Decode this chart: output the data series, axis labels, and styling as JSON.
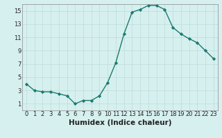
{
  "x": [
    0,
    1,
    2,
    3,
    4,
    5,
    6,
    7,
    8,
    9,
    10,
    11,
    12,
    13,
    14,
    15,
    16,
    17,
    18,
    19,
    20,
    21,
    22,
    23
  ],
  "y": [
    4.0,
    3.0,
    2.8,
    2.8,
    2.5,
    2.2,
    1.0,
    1.5,
    1.5,
    2.2,
    4.2,
    7.2,
    11.5,
    14.8,
    15.2,
    15.8,
    15.8,
    15.2,
    12.5,
    11.5,
    10.8,
    10.2,
    9.0,
    7.8
  ],
  "line_color": "#1a7a6e",
  "marker": "D",
  "marker_size": 2.2,
  "background_color": "#d6f0ef",
  "grid_color": "#c0dedd",
  "xlabel": "Humidex (Indice chaleur)",
  "xlim": [
    -0.5,
    23.5
  ],
  "ylim": [
    0,
    16
  ],
  "yticks": [
    1,
    3,
    5,
    7,
    9,
    11,
    13,
    15
  ],
  "xticks": [
    0,
    1,
    2,
    3,
    4,
    5,
    6,
    7,
    8,
    9,
    10,
    11,
    12,
    13,
    14,
    15,
    16,
    17,
    18,
    19,
    20,
    21,
    22,
    23
  ],
  "xtick_labels": [
    "0",
    "1",
    "2",
    "3",
    "4",
    "5",
    "6",
    "7",
    "8",
    "9",
    "10",
    "11",
    "12",
    "13",
    "14",
    "15",
    "16",
    "17",
    "18",
    "19",
    "20",
    "21",
    "22",
    "23"
  ],
  "tick_color": "#222222",
  "xlabel_fontsize": 7.5,
  "tick_fontsize": 6.0,
  "linewidth": 1.0
}
